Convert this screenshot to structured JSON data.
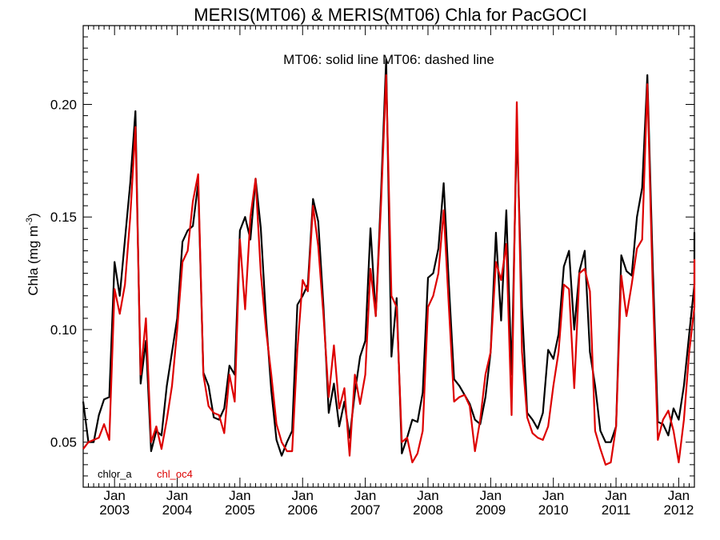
{
  "chart_data": {
    "type": "line",
    "title": "MERIS(MT06) & MERIS(MT06)  Chla for PacGOCI",
    "annotation": "MT06: solid line   MT06: dashed line",
    "ylabel": "Chla (mg m",
    "ylabel_sup": "-3",
    "ylabel_close": ")",
    "xlim": [
      2002.5,
      2012.25
    ],
    "ylim": [
      0.03,
      0.235
    ],
    "yticks": [
      0.05,
      0.1,
      0.15,
      0.2
    ],
    "ytick_labels": [
      "0.05",
      "0.10",
      "0.15",
      "0.20"
    ],
    "xticks": [
      2003,
      2004,
      2005,
      2006,
      2007,
      2008,
      2009,
      2010,
      2011,
      2012
    ],
    "xtick_month": "Jan",
    "xtick_years": [
      "2003",
      "2004",
      "2005",
      "2006",
      "2007",
      "2008",
      "2009",
      "2010",
      "2011",
      "2012"
    ],
    "grid": false,
    "legend": "bottom-left",
    "x_start": 2002.5,
    "x_step_months": 1,
    "series": [
      {
        "name": "chlor_a",
        "color": "#000000",
        "values": [
          0.068,
          0.05,
          0.05,
          0.062,
          0.069,
          0.07,
          0.13,
          0.115,
          0.14,
          0.165,
          0.197,
          0.076,
          0.095,
          0.046,
          0.055,
          0.053,
          0.075,
          0.09,
          0.105,
          0.139,
          0.144,
          0.146,
          0.165,
          0.081,
          0.075,
          0.061,
          0.06,
          0.065,
          0.084,
          0.08,
          0.144,
          0.15,
          0.14,
          0.167,
          0.145,
          0.105,
          0.073,
          0.051,
          0.044,
          0.05,
          0.055,
          0.111,
          0.115,
          0.12,
          0.158,
          0.148,
          0.11,
          0.063,
          0.076,
          0.057,
          0.068,
          0.052,
          0.072,
          0.088,
          0.095,
          0.145,
          0.106,
          0.16,
          0.22,
          0.088,
          0.114,
          0.045,
          0.052,
          0.06,
          0.059,
          0.072,
          0.123,
          0.125,
          0.136,
          0.165,
          0.12,
          0.078,
          0.075,
          0.071,
          0.067,
          0.06,
          0.058,
          0.07,
          0.09,
          0.143,
          0.104,
          0.153,
          0.08,
          0.19,
          0.11,
          0.063,
          0.06,
          0.056,
          0.063,
          0.091,
          0.087,
          0.098,
          0.128,
          0.135,
          0.1,
          0.126,
          0.135,
          0.09,
          0.075,
          0.055,
          0.05,
          0.05,
          0.057,
          0.133,
          0.126,
          0.124,
          0.15,
          0.163,
          0.213,
          0.13,
          0.059,
          0.058,
          0.053,
          0.065,
          0.06,
          0.075,
          0.098,
          0.12,
          0.143,
          0.135
        ]
      },
      {
        "name": "chl_oc4",
        "color": "#dd0000",
        "values": [
          0.047,
          0.05,
          0.051,
          0.052,
          0.058,
          0.051,
          0.118,
          0.107,
          0.12,
          0.15,
          0.19,
          0.08,
          0.105,
          0.05,
          0.057,
          0.047,
          0.06,
          0.075,
          0.1,
          0.13,
          0.135,
          0.157,
          0.169,
          0.08,
          0.066,
          0.063,
          0.062,
          0.054,
          0.08,
          0.068,
          0.14,
          0.109,
          0.15,
          0.167,
          0.125,
          0.1,
          0.08,
          0.058,
          0.05,
          0.046,
          0.046,
          0.091,
          0.122,
          0.117,
          0.155,
          0.137,
          0.106,
          0.07,
          0.093,
          0.065,
          0.074,
          0.044,
          0.08,
          0.067,
          0.08,
          0.127,
          0.106,
          0.155,
          0.213,
          0.115,
          0.11,
          0.05,
          0.052,
          0.041,
          0.045,
          0.055,
          0.11,
          0.115,
          0.125,
          0.153,
          0.11,
          0.068,
          0.07,
          0.071,
          0.066,
          0.046,
          0.06,
          0.08,
          0.09,
          0.13,
          0.122,
          0.138,
          0.062,
          0.201,
          0.09,
          0.061,
          0.054,
          0.052,
          0.051,
          0.057,
          0.075,
          0.09,
          0.12,
          0.118,
          0.074,
          0.125,
          0.127,
          0.117,
          0.055,
          0.047,
          0.04,
          0.041,
          0.057,
          0.124,
          0.106,
          0.12,
          0.136,
          0.14,
          0.209,
          0.12,
          0.051,
          0.06,
          0.064,
          0.055,
          0.041,
          0.06,
          0.09,
          0.11,
          0.131,
          0.112
        ]
      }
    ]
  }
}
